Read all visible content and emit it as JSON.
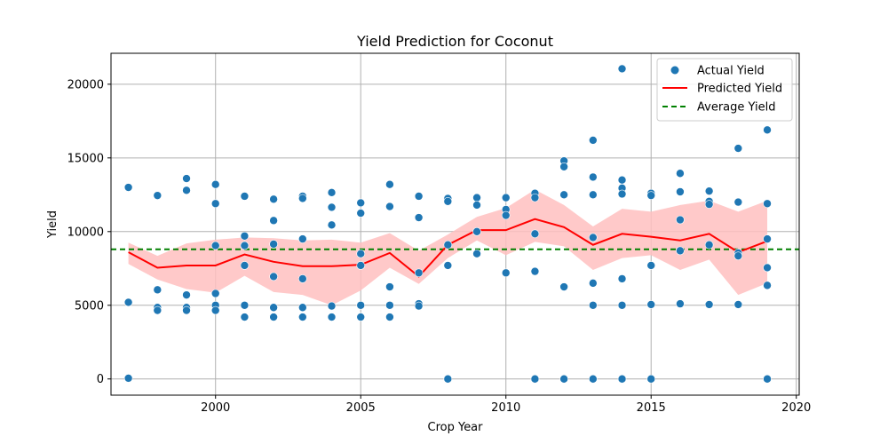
{
  "chart_data": {
    "type": "scatter",
    "title": "Yield Prediction for Coconut",
    "xlabel": "Crop Year",
    "ylabel": "Yield",
    "xlim": [
      1996.4,
      2020.1
    ],
    "ylim": [
      -1100,
      22100
    ],
    "x_ticks": [
      2000,
      2005,
      2010,
      2015,
      2020
    ],
    "y_ticks": [
      0,
      5000,
      10000,
      15000,
      20000
    ],
    "x_tick_labels": [
      "2000",
      "2005",
      "2010",
      "2015",
      "2020"
    ],
    "y_tick_labels": [
      "0",
      "5000",
      "10000",
      "15000",
      "20000"
    ],
    "grid": true,
    "legend_position": "upper right",
    "legend": {
      "actual": "Actual Yield",
      "predicted": "Predicted Yield",
      "average": "Average Yield"
    },
    "colors": {
      "actual": "#1f77b4",
      "predicted": "#ff0000",
      "band": "#ffbfbf",
      "average": "#008000",
      "grid": "#b0b0b0"
    },
    "average_yield": 8800,
    "actual_points": [
      [
        1997,
        13000
      ],
      [
        1997,
        5200
      ],
      [
        1997,
        50
      ],
      [
        1998,
        12450
      ],
      [
        1998,
        6050
      ],
      [
        1998,
        4850
      ],
      [
        1998,
        4650
      ],
      [
        1999,
        13600
      ],
      [
        1999,
        12800
      ],
      [
        1999,
        5700
      ],
      [
        1999,
        4850
      ],
      [
        1999,
        4650
      ],
      [
        2000,
        13200
      ],
      [
        2000,
        11900
      ],
      [
        2000,
        9050
      ],
      [
        2000,
        5800
      ],
      [
        2000,
        5000
      ],
      [
        2000,
        4650
      ],
      [
        2001,
        12400
      ],
      [
        2001,
        9700
      ],
      [
        2001,
        9050
      ],
      [
        2001,
        7700
      ],
      [
        2001,
        5000
      ],
      [
        2001,
        4200
      ],
      [
        2002,
        12200
      ],
      [
        2002,
        10750
      ],
      [
        2002,
        9150
      ],
      [
        2002,
        6950
      ],
      [
        2002,
        4850
      ],
      [
        2002,
        4200
      ],
      [
        2003,
        12400
      ],
      [
        2003,
        12250
      ],
      [
        2003,
        9500
      ],
      [
        2003,
        6800
      ],
      [
        2003,
        4850
      ],
      [
        2003,
        4200
      ],
      [
        2004,
        12650
      ],
      [
        2004,
        11650
      ],
      [
        2004,
        10450
      ],
      [
        2004,
        4950
      ],
      [
        2004,
        4200
      ],
      [
        2005,
        11950
      ],
      [
        2005,
        11250
      ],
      [
        2005,
        8500
      ],
      [
        2005,
        7700
      ],
      [
        2005,
        5000
      ],
      [
        2005,
        4200
      ],
      [
        2006,
        13200
      ],
      [
        2006,
        11700
      ],
      [
        2006,
        6250
      ],
      [
        2006,
        5000
      ],
      [
        2006,
        4200
      ],
      [
        2007,
        12400
      ],
      [
        2007,
        10950
      ],
      [
        2007,
        7200
      ],
      [
        2007,
        5100
      ],
      [
        2007,
        4950
      ],
      [
        2008,
        12250
      ],
      [
        2008,
        12050
      ],
      [
        2008,
        9100
      ],
      [
        2008,
        7700
      ],
      [
        2008,
        0
      ],
      [
        2009,
        12300
      ],
      [
        2009,
        11800
      ],
      [
        2009,
        10000
      ],
      [
        2009,
        8500
      ],
      [
        2010,
        12300
      ],
      [
        2010,
        11500
      ],
      [
        2010,
        11100
      ],
      [
        2010,
        7200
      ],
      [
        2011,
        12600
      ],
      [
        2011,
        12300
      ],
      [
        2011,
        9850
      ],
      [
        2011,
        7300
      ],
      [
        2011,
        0
      ],
      [
        2012,
        14800
      ],
      [
        2012,
        14400
      ],
      [
        2012,
        12500
      ],
      [
        2012,
        6250
      ],
      [
        2012,
        0
      ],
      [
        2013,
        16200
      ],
      [
        2013,
        13700
      ],
      [
        2013,
        12500
      ],
      [
        2013,
        9600
      ],
      [
        2013,
        6500
      ],
      [
        2013,
        5000
      ],
      [
        2013,
        0
      ],
      [
        2014,
        21050
      ],
      [
        2014,
        13500
      ],
      [
        2014,
        12950
      ],
      [
        2014,
        12550
      ],
      [
        2014,
        6800
      ],
      [
        2014,
        5000
      ],
      [
        2014,
        0
      ],
      [
        2015,
        12600
      ],
      [
        2015,
        12450
      ],
      [
        2015,
        7700
      ],
      [
        2015,
        5050
      ],
      [
        2015,
        0
      ],
      [
        2016,
        13950
      ],
      [
        2016,
        12700
      ],
      [
        2016,
        10800
      ],
      [
        2016,
        8700
      ],
      [
        2016,
        5100
      ],
      [
        2017,
        12750
      ],
      [
        2017,
        12050
      ],
      [
        2017,
        11850
      ],
      [
        2017,
        9100
      ],
      [
        2017,
        5050
      ],
      [
        2018,
        15650
      ],
      [
        2018,
        12000
      ],
      [
        2018,
        8550
      ],
      [
        2018,
        8350
      ],
      [
        2018,
        5050
      ],
      [
        2019,
        16900
      ],
      [
        2019,
        11900
      ],
      [
        2019,
        9500
      ],
      [
        2019,
        7550
      ],
      [
        2019,
        6350
      ],
      [
        2019,
        0
      ]
    ],
    "predicted": {
      "x": [
        1997,
        1998,
        1999,
        2000,
        2001,
        2002,
        2003,
        2004,
        2005,
        2006,
        2007,
        2008,
        2009,
        2010,
        2011,
        2012,
        2013,
        2014,
        2015,
        2016,
        2017,
        2018,
        2019
      ],
      "y": [
        8600,
        7550,
        7700,
        7700,
        8450,
        7950,
        7650,
        7650,
        7750,
        8550,
        6950,
        9100,
        10100,
        10100,
        10850,
        10300,
        9100,
        9850,
        9650,
        9400,
        9850,
        8600,
        9350
      ],
      "upper": [
        9250,
        8350,
        9200,
        9450,
        9600,
        9550,
        9400,
        9450,
        9250,
        9900,
        8700,
        9800,
        11000,
        11600,
        12850,
        11800,
        10350,
        11550,
        11350,
        11800,
        12100,
        11350,
        12100
      ],
      "lower": [
        7800,
        6750,
        6100,
        5850,
        7000,
        5900,
        5700,
        5000,
        6000,
        7550,
        6450,
        8200,
        9400,
        8400,
        9300,
        9000,
        7400,
        8200,
        8400,
        7400,
        8100,
        5700,
        6500
      ]
    }
  }
}
